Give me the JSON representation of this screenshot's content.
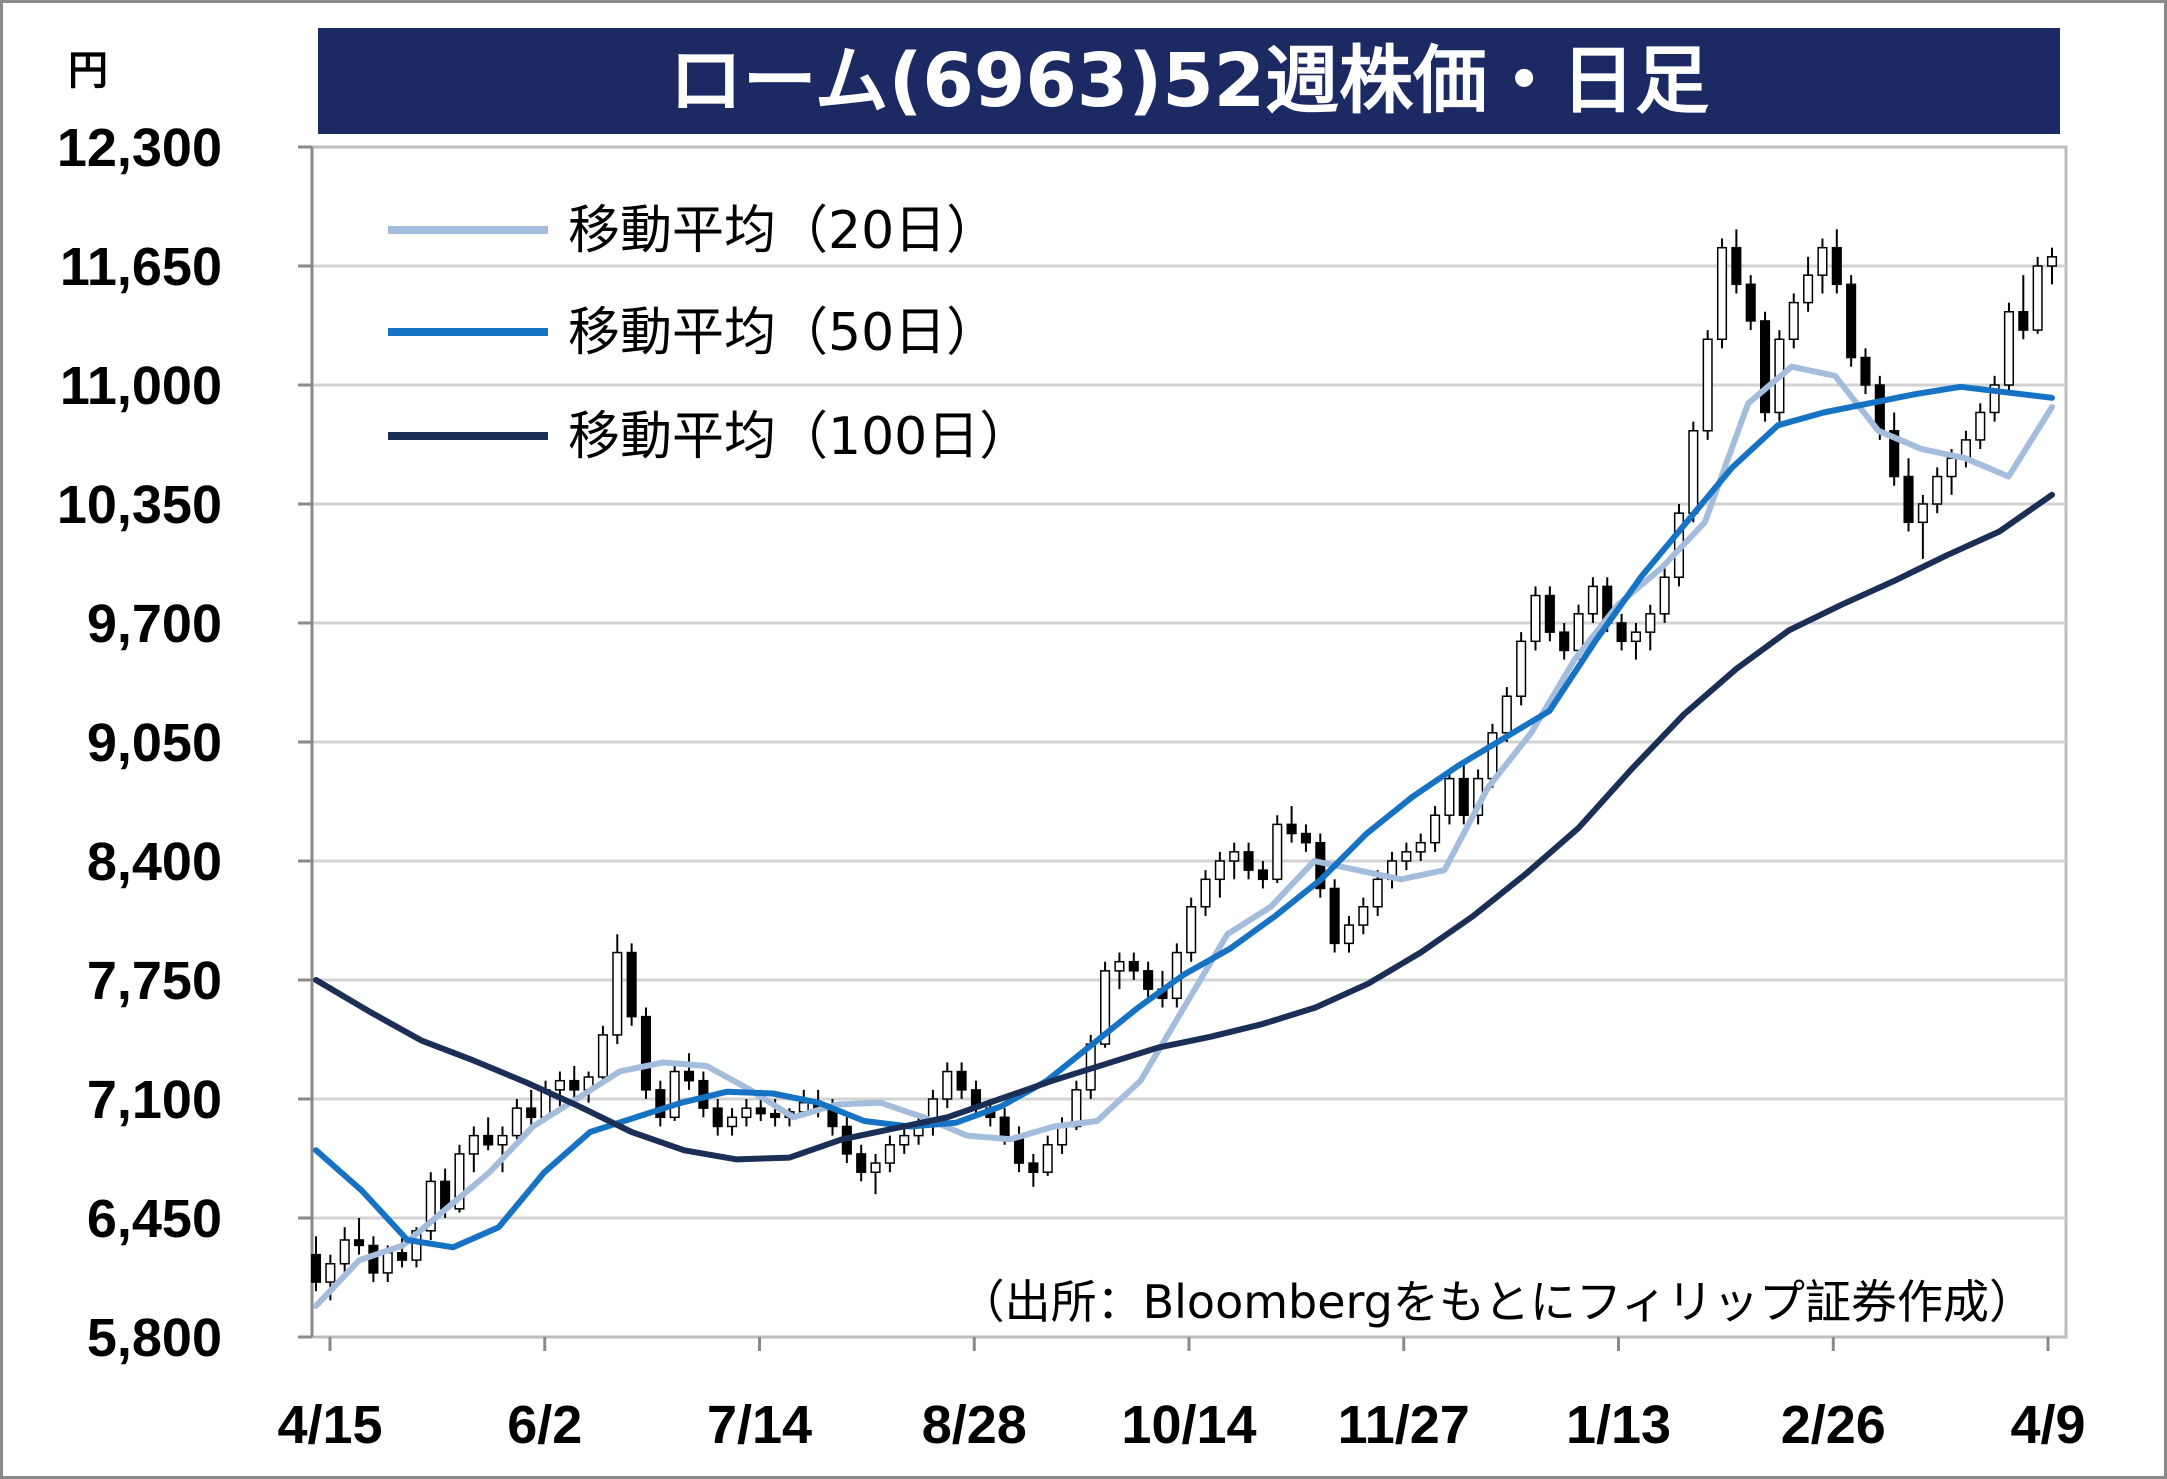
{
  "chart_data": {
    "type": "candlestick",
    "title": "ローム(6963)52週株価・日足",
    "unit": "円",
    "ylim": [
      5800,
      12300
    ],
    "yticks": [
      "12,300",
      "11,650",
      "11,000",
      "10,350",
      "9,700",
      "9,050",
      "8,400",
      "7,750",
      "7,100",
      "6,450",
      "5,800"
    ],
    "ytick_values": [
      12300,
      11650,
      11000,
      10350,
      9700,
      9050,
      8400,
      7750,
      7100,
      6450,
      5800
    ],
    "xticks": [
      "4/15",
      "6/2",
      "7/14",
      "8/28",
      "10/14",
      "11/27",
      "1/13",
      "2/26",
      "4/9"
    ],
    "grid": true,
    "legend_position": "top-left",
    "note": "（出所：Bloombergをもとにフィリップ証券作成）",
    "series": [
      {
        "name": "移動平均（20日）",
        "color": "#a4bddd",
        "values": [
          5970,
          6220,
          6300,
          6500,
          6700,
          6950,
          7100,
          7250,
          7300,
          7280,
          7150,
          7000,
          7070,
          7080,
          7000,
          6900,
          6880,
          6950,
          6980,
          7200,
          7600,
          8000,
          8150,
          8400,
          8350,
          8300,
          8350,
          8800,
          9100,
          9500,
          9800,
          10000,
          10250,
          10900,
          11100,
          11050,
          10750,
          10650,
          10600,
          10500,
          10880
        ]
      },
      {
        "name": "移動平均（50日）",
        "color": "#1673c4",
        "values": [
          6820,
          6600,
          6330,
          6290,
          6400,
          6700,
          6920,
          7000,
          7080,
          7140,
          7130,
          7080,
          6980,
          6950,
          6970,
          7060,
          7200,
          7400,
          7600,
          7780,
          7920,
          8100,
          8300,
          8550,
          8750,
          8920,
          9070,
          9220,
          9600,
          9950,
          10250,
          10550,
          10780,
          10850,
          10900,
          10950,
          10990,
          10960,
          10930
        ]
      },
      {
        "name": "移動平均（100日）",
        "color": "#1b2f56",
        "values": [
          7750,
          7580,
          7420,
          7310,
          7190,
          7060,
          6920,
          6820,
          6770,
          6780,
          6880,
          6940,
          7000,
          7100,
          7200,
          7290,
          7380,
          7440,
          7510,
          7600,
          7730,
          7900,
          8100,
          8330,
          8580,
          8900,
          9200,
          9450,
          9660,
          9800,
          9930,
          10070,
          10200,
          10400
        ]
      }
    ],
    "candles_ohlc": [
      [
        6250,
        6350,
        6050,
        6100
      ],
      [
        6100,
        6250,
        6000,
        6200
      ],
      [
        6200,
        6400,
        6150,
        6330
      ],
      [
        6330,
        6450,
        6250,
        6300
      ],
      [
        6300,
        6350,
        6100,
        6150
      ],
      [
        6150,
        6300,
        6100,
        6260
      ],
      [
        6260,
        6340,
        6180,
        6220
      ],
      [
        6220,
        6400,
        6180,
        6380
      ],
      [
        6380,
        6700,
        6330,
        6650
      ],
      [
        6650,
        6720,
        6450,
        6500
      ],
      [
        6500,
        6850,
        6480,
        6800
      ],
      [
        6800,
        6950,
        6700,
        6900
      ],
      [
        6900,
        7000,
        6820,
        6850
      ],
      [
        6850,
        6950,
        6700,
        6900
      ],
      [
        6900,
        7100,
        6880,
        7050
      ],
      [
        7050,
        7150,
        6950,
        7000
      ],
      [
        7000,
        7200,
        6980,
        7150
      ],
      [
        7150,
        7250,
        7050,
        7200
      ],
      [
        7200,
        7280,
        7100,
        7150
      ],
      [
        7150,
        7250,
        7080,
        7220
      ],
      [
        7220,
        7500,
        7180,
        7450
      ],
      [
        7450,
        8000,
        7400,
        7900
      ],
      [
        7900,
        7950,
        7500,
        7550
      ],
      [
        7550,
        7600,
        7100,
        7150
      ],
      [
        7150,
        7200,
        6950,
        7000
      ],
      [
        7000,
        7300,
        6980,
        7250
      ],
      [
        7250,
        7350,
        7150,
        7200
      ],
      [
        7200,
        7250,
        7000,
        7050
      ],
      [
        7050,
        7100,
        6900,
        6950
      ],
      [
        6950,
        7050,
        6900,
        7000
      ],
      [
        7000,
        7100,
        6950,
        7050
      ],
      [
        7050,
        7150,
        6980,
        7020
      ],
      [
        7020,
        7100,
        6950,
        7000
      ],
      [
        7000,
        7050,
        6950,
        7030
      ],
      [
        7030,
        7150,
        7000,
        7080
      ],
      [
        7080,
        7150,
        7000,
        7050
      ],
      [
        7050,
        7100,
        6900,
        6950
      ],
      [
        6950,
        7000,
        6750,
        6800
      ],
      [
        6800,
        6850,
        6650,
        6700
      ],
      [
        6700,
        6800,
        6580,
        6750
      ],
      [
        6750,
        6900,
        6700,
        6850
      ],
      [
        6850,
        6950,
        6800,
        6900
      ],
      [
        6900,
        7000,
        6850,
        6950
      ],
      [
        6950,
        7150,
        6900,
        7100
      ],
      [
        7100,
        7300,
        7050,
        7250
      ],
      [
        7250,
        7300,
        7100,
        7150
      ],
      [
        7150,
        7200,
        7000,
        7050
      ],
      [
        7050,
        7100,
        6950,
        7000
      ],
      [
        7000,
        7050,
        6850,
        6900
      ],
      [
        6900,
        6950,
        6700,
        6750
      ],
      [
        6750,
        6800,
        6620,
        6700
      ],
      [
        6700,
        6900,
        6680,
        6850
      ],
      [
        6850,
        7000,
        6800,
        6950
      ],
      [
        6950,
        7200,
        6930,
        7150
      ],
      [
        7150,
        7450,
        7100,
        7400
      ],
      [
        7400,
        7850,
        7380,
        7800
      ],
      [
        7800,
        7900,
        7700,
        7850
      ],
      [
        7850,
        7900,
        7750,
        7800
      ],
      [
        7800,
        7850,
        7650,
        7700
      ],
      [
        7700,
        7800,
        7600,
        7650
      ],
      [
        7650,
        7950,
        7600,
        7900
      ],
      [
        7900,
        8200,
        7850,
        8150
      ],
      [
        8150,
        8350,
        8100,
        8300
      ],
      [
        8300,
        8450,
        8200,
        8400
      ],
      [
        8400,
        8500,
        8300,
        8450
      ],
      [
        8450,
        8500,
        8300,
        8350
      ],
      [
        8350,
        8400,
        8250,
        8300
      ],
      [
        8300,
        8650,
        8280,
        8600
      ],
      [
        8600,
        8700,
        8500,
        8550
      ],
      [
        8550,
        8600,
        8450,
        8500
      ],
      [
        8500,
        8550,
        8200,
        8250
      ],
      [
        8250,
        8300,
        7900,
        7950
      ],
      [
        7950,
        8100,
        7900,
        8050
      ],
      [
        8050,
        8200,
        8000,
        8150
      ],
      [
        8150,
        8350,
        8100,
        8300
      ],
      [
        8300,
        8450,
        8250,
        8400
      ],
      [
        8400,
        8500,
        8350,
        8450
      ],
      [
        8450,
        8550,
        8400,
        8500
      ],
      [
        8500,
        8700,
        8450,
        8650
      ],
      [
        8650,
        8900,
        8600,
        8850
      ],
      [
        8850,
        8950,
        8600,
        8650
      ],
      [
        8650,
        8900,
        8600,
        8850
      ],
      [
        8850,
        9150,
        8800,
        9100
      ],
      [
        9100,
        9350,
        9050,
        9300
      ],
      [
        9300,
        9650,
        9250,
        9600
      ],
      [
        9600,
        9900,
        9550,
        9850
      ],
      [
        9850,
        9900,
        9600,
        9650
      ],
      [
        9650,
        9700,
        9500,
        9550
      ],
      [
        9550,
        9800,
        9500,
        9750
      ],
      [
        9750,
        9950,
        9700,
        9900
      ],
      [
        9900,
        9950,
        9650,
        9700
      ],
      [
        9700,
        9750,
        9550,
        9600
      ],
      [
        9600,
        9700,
        9500,
        9650
      ],
      [
        9650,
        9800,
        9550,
        9750
      ],
      [
        9750,
        10000,
        9700,
        9950
      ],
      [
        9950,
        10350,
        9900,
        10300
      ],
      [
        10300,
        10800,
        10250,
        10750
      ],
      [
        10750,
        11300,
        10700,
        11250
      ],
      [
        11250,
        11800,
        11200,
        11750
      ],
      [
        11750,
        11850,
        11500,
        11550
      ],
      [
        11550,
        11600,
        11300,
        11350
      ],
      [
        11350,
        11400,
        10800,
        10850
      ],
      [
        10850,
        11300,
        10800,
        11250
      ],
      [
        11250,
        11500,
        11200,
        11450
      ],
      [
        11450,
        11700,
        11400,
        11600
      ],
      [
        11600,
        11800,
        11500,
        11750
      ],
      [
        11750,
        11850,
        11500,
        11550
      ],
      [
        11550,
        11600,
        11100,
        11150
      ],
      [
        11150,
        11200,
        10950,
        11000
      ],
      [
        11000,
        11050,
        10700,
        10750
      ],
      [
        10750,
        10850,
        10450,
        10500
      ],
      [
        10500,
        10600,
        10200,
        10250
      ],
      [
        10250,
        10400,
        10050,
        10350
      ],
      [
        10350,
        10550,
        10300,
        10500
      ],
      [
        10500,
        10650,
        10400,
        10600
      ],
      [
        10600,
        10750,
        10550,
        10700
      ],
      [
        10700,
        10900,
        10650,
        10850
      ],
      [
        10850,
        11050,
        10800,
        11000
      ],
      [
        11000,
        11450,
        10950,
        11400
      ],
      [
        11400,
        11600,
        11250,
        11300
      ],
      [
        11300,
        11700,
        11280,
        11650
      ],
      [
        11650,
        11750,
        11550,
        11700
      ]
    ]
  },
  "legend": [
    {
      "label": "移動平均（20日）",
      "color": "#a4bddd"
    },
    {
      "label": "移動平均（50日）",
      "color": "#1673c4"
    },
    {
      "label": "移動平均（100日）",
      "color": "#1b2f56"
    }
  ]
}
